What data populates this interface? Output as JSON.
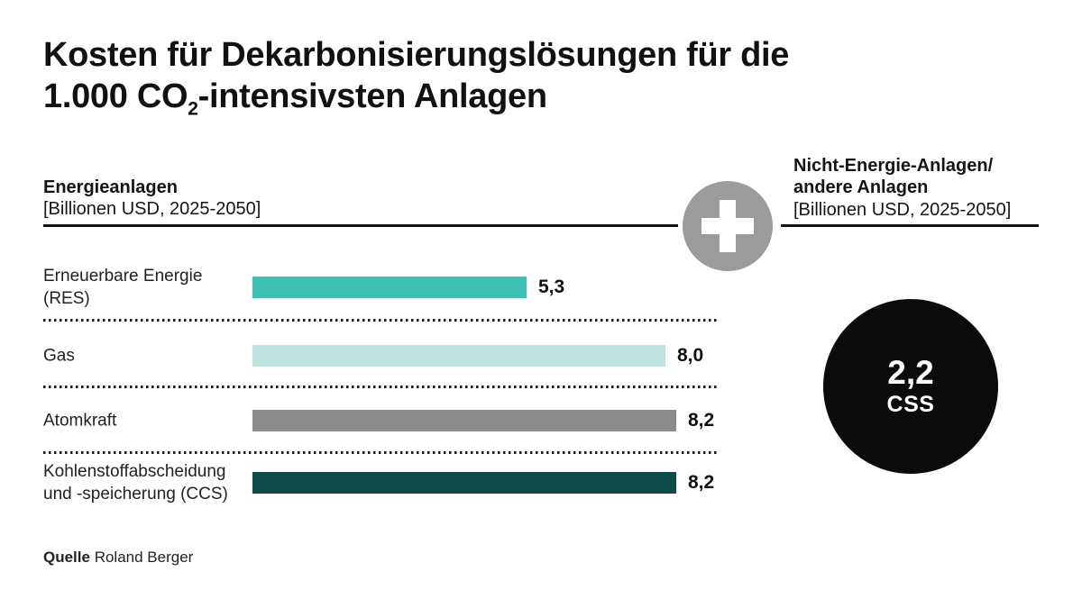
{
  "title": {
    "line1": "Kosten für Dekarbonisierungslösungen für die",
    "line2_pre": "1.000 CO",
    "line2_sub": "2",
    "line2_post": "-intensivsten Anlagen"
  },
  "left_panel": {
    "heading": "Energieanlagen",
    "unit": "[Billionen USD, 2025-2050]"
  },
  "right_panel": {
    "heading_line1": "Nicht-Energie-Anlagen/",
    "heading_line2": "andere Anlagen",
    "unit": "[Billionen USD, 2025-2050]",
    "circle": {
      "value_label": "2,2",
      "label": "CSS",
      "value": 2.2,
      "fill_color": "#0b0b0b",
      "text_color": "#ffffff"
    }
  },
  "plus_icon": {
    "symbol": "+",
    "circle_color": "#9b9b9b",
    "cross_color": "#ffffff"
  },
  "chart_data": {
    "type": "bar",
    "orientation": "horizontal",
    "title": "Kosten für Dekarbonisierungslösungen für die 1.000 CO2-intensivsten Anlagen",
    "xlabel": "Billionen USD, 2025-2050",
    "xlim": [
      0,
      8.8
    ],
    "grid": false,
    "categories": [
      "Erneuerbare Energie\n(RES)",
      "Gas",
      "Atomkraft",
      "Kohlenstoffabscheidung\nund -speicherung (CCS)"
    ],
    "values": [
      5.3,
      8.0,
      8.2,
      8.2
    ],
    "rows": [
      {
        "label": "Erneuerbare Energie\n(RES)",
        "value": 5.3,
        "value_label": "5,3",
        "color": "#40bfb3"
      },
      {
        "label": "Gas",
        "value": 8.0,
        "value_label": "8,0",
        "color": "#bde3df"
      },
      {
        "label": "Atomkraft",
        "value": 8.2,
        "value_label": "8,2",
        "color": "#8a8a8a"
      },
      {
        "label": "Kohlenstoffabscheidung\nund -speicherung (CCS)",
        "value": 8.2,
        "value_label": "8,2",
        "color": "#0d4b49"
      }
    ],
    "secondary_datapoint": {
      "panel": "Nicht-Energie-Anlagen/andere Anlagen",
      "label": "CSS",
      "value": 2.2,
      "value_label": "2,2"
    }
  },
  "footer": {
    "source_label": "Quelle",
    "source_value": "Roland Berger"
  }
}
